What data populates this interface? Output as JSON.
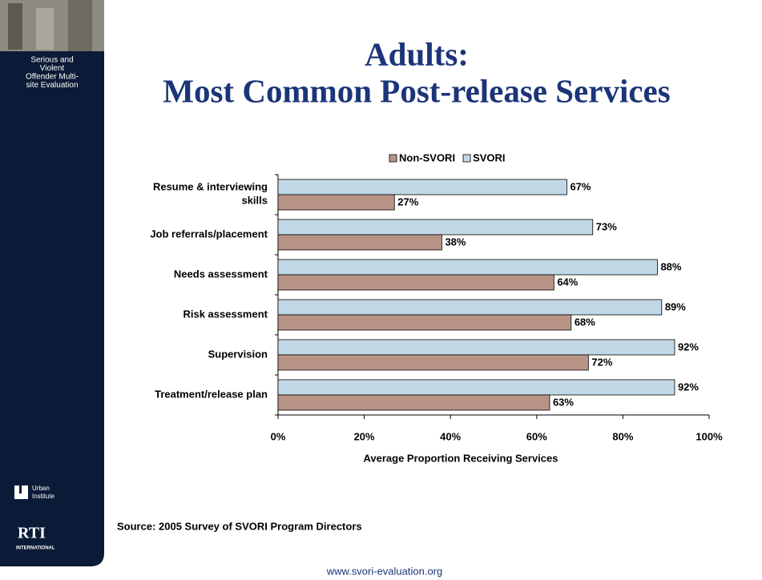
{
  "sidebar": {
    "project": [
      "Serious and",
      "Violent",
      "Offender Multi-",
      "site Evaluation"
    ],
    "logos": [
      "Urban",
      "Institute",
      "RTI",
      "INTERNATIONAL"
    ]
  },
  "footer_url": "www.svori-evaluation.org",
  "chart_data": {
    "type": "hbar",
    "title": "Adults:",
    "subtitle": "Most Common Post-release Services",
    "categories": [
      "Resume & interviewing skills",
      "Job referrals/placement",
      "Needs assessment",
      "Risk assessment",
      "Supervision",
      "Treatment/release plan"
    ],
    "series": [
      {
        "name": "Non-SVORI",
        "color": "#b89487",
        "values": [
          27,
          38,
          64,
          68,
          72,
          63
        ],
        "value_labels": [
          "27%",
          "38%",
          "64%",
          "68%",
          "72%",
          "63%"
        ]
      },
      {
        "name": "SVORI",
        "color": "#c3d8e6",
        "values": [
          67,
          73,
          88,
          89,
          92,
          92
        ],
        "value_labels": [
          "67%",
          "73%",
          "88%",
          "89%",
          "92%",
          "92%"
        ]
      }
    ],
    "xlabel": "Average Proportion Receiving Services",
    "xlim": [
      0,
      100
    ],
    "xticks": [
      {
        "value": 0,
        "label": "0%"
      },
      {
        "value": 20,
        "label": "20%"
      },
      {
        "value": 40,
        "label": "40%"
      },
      {
        "value": 60,
        "label": "60%"
      },
      {
        "value": 80,
        "label": "80%"
      },
      {
        "value": 100,
        "label": "100%"
      }
    ],
    "legend": "top",
    "source": "Source: 2005 Survey of SVORI Program Directors"
  }
}
